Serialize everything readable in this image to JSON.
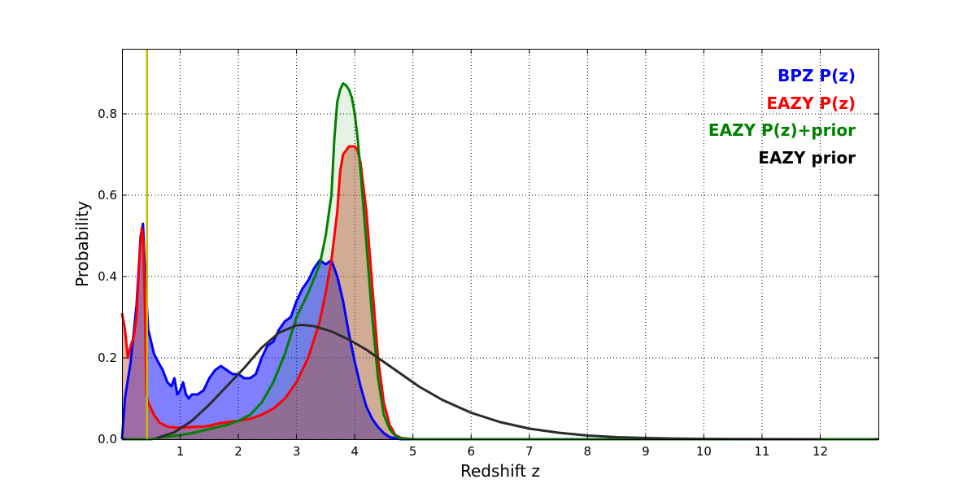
{
  "chart_data": {
    "type": "area",
    "xlabel": "Redshift z",
    "ylabel": "Probability",
    "xlim": [
      0,
      13
    ],
    "ylim": [
      0,
      0.96
    ],
    "x_ticks": [
      1,
      2,
      3,
      4,
      5,
      6,
      7,
      8,
      9,
      10,
      11,
      12
    ],
    "y_ticks": [
      0.0,
      0.2,
      0.4,
      0.6,
      0.8
    ],
    "y_tick_labels": [
      "0.0",
      "0.2",
      "0.4",
      "0.6",
      "0.8"
    ],
    "grid": true,
    "legend_position": "top-right",
    "vertical_line": {
      "x": 0.43,
      "color": "#bfbf00"
    },
    "series": [
      {
        "name": "BPZ P(z)",
        "color": "#0000ff",
        "fill": "rgba(0,0,255,0.5)",
        "x": [
          0,
          0.05,
          0.15,
          0.25,
          0.32,
          0.36,
          0.4,
          0.45,
          0.55,
          0.62,
          0.7,
          0.78,
          0.85,
          0.9,
          0.95,
          1.0,
          1.05,
          1.1,
          1.15,
          1.2,
          1.3,
          1.4,
          1.5,
          1.6,
          1.7,
          1.8,
          1.9,
          2.0,
          2.1,
          2.2,
          2.3,
          2.4,
          2.5,
          2.6,
          2.7,
          2.8,
          2.9,
          3.0,
          3.1,
          3.2,
          3.3,
          3.4,
          3.5,
          3.6,
          3.7,
          3.8,
          3.9,
          4.0,
          4.1,
          4.2,
          4.3,
          4.4,
          4.5,
          4.6,
          4.7,
          4.8,
          5.0,
          13
        ],
        "y": [
          0,
          0.1,
          0.19,
          0.33,
          0.5,
          0.53,
          0.4,
          0.27,
          0.21,
          0.19,
          0.17,
          0.14,
          0.13,
          0.15,
          0.11,
          0.12,
          0.14,
          0.11,
          0.1,
          0.11,
          0.11,
          0.12,
          0.15,
          0.17,
          0.18,
          0.17,
          0.16,
          0.16,
          0.15,
          0.15,
          0.16,
          0.2,
          0.23,
          0.24,
          0.27,
          0.29,
          0.3,
          0.34,
          0.37,
          0.39,
          0.42,
          0.44,
          0.43,
          0.44,
          0.4,
          0.34,
          0.26,
          0.19,
          0.13,
          0.08,
          0.05,
          0.03,
          0.015,
          0.005,
          0.002,
          0,
          0,
          0
        ]
      },
      {
        "name": "EAZY P(z)",
        "color": "#ff0000",
        "fill": "rgba(205,85,55,0.45)",
        "x": [
          0,
          0.05,
          0.1,
          0.15,
          0.2,
          0.25,
          0.3,
          0.34,
          0.37,
          0.4,
          0.42,
          0.45,
          0.55,
          0.65,
          0.8,
          1.0,
          1.2,
          1.4,
          1.5,
          1.7,
          2.0,
          2.2,
          2.4,
          2.6,
          2.8,
          3.0,
          3.2,
          3.4,
          3.5,
          3.6,
          3.7,
          3.75,
          3.8,
          3.9,
          4.0,
          4.05,
          4.1,
          4.2,
          4.3,
          4.4,
          4.5,
          4.6,
          4.7,
          4.8,
          5.0,
          13
        ],
        "y": [
          0.31,
          0.27,
          0.2,
          0.23,
          0.25,
          0.3,
          0.45,
          0.52,
          0.48,
          0.28,
          0.11,
          0.09,
          0.06,
          0.04,
          0.03,
          0.028,
          0.03,
          0.031,
          0.033,
          0.04,
          0.045,
          0.05,
          0.06,
          0.075,
          0.1,
          0.14,
          0.2,
          0.29,
          0.36,
          0.44,
          0.56,
          0.66,
          0.7,
          0.72,
          0.72,
          0.71,
          0.68,
          0.56,
          0.38,
          0.2,
          0.09,
          0.035,
          0.01,
          0.003,
          0,
          0
        ]
      },
      {
        "name": "EAZY P(z)+prior",
        "color": "#008000",
        "fill": "rgba(0,128,0,0.1)",
        "x": [
          0,
          0.5,
          0.7,
          1.0,
          1.2,
          1.5,
          1.8,
          2.0,
          2.2,
          2.4,
          2.6,
          2.8,
          3.0,
          3.2,
          3.4,
          3.5,
          3.6,
          3.65,
          3.7,
          3.75,
          3.8,
          3.85,
          3.9,
          3.95,
          4.0,
          4.05,
          4.1,
          4.2,
          4.3,
          4.4,
          4.5,
          4.6,
          4.7,
          4.8,
          5.0,
          13
        ],
        "y": [
          0,
          0,
          0.005,
          0.01,
          0.015,
          0.025,
          0.035,
          0.045,
          0.06,
          0.09,
          0.14,
          0.21,
          0.3,
          0.36,
          0.43,
          0.5,
          0.6,
          0.74,
          0.83,
          0.86,
          0.875,
          0.87,
          0.86,
          0.84,
          0.8,
          0.74,
          0.66,
          0.48,
          0.3,
          0.15,
          0.06,
          0.025,
          0.008,
          0.002,
          0,
          0
        ]
      },
      {
        "name": "EAZY prior",
        "color": "#2b2b2b",
        "fill": "none",
        "x": [
          0.6,
          0.9,
          1.2,
          1.5,
          1.8,
          2.1,
          2.4,
          2.7,
          3.0,
          3.1,
          3.3,
          3.6,
          3.9,
          4.2,
          4.5,
          4.8,
          5.1,
          5.5,
          6.0,
          6.5,
          7.0,
          7.5,
          8.0,
          8.5,
          9.0,
          9.5,
          10.0,
          11.0,
          12.0
        ],
        "y": [
          0.003,
          0.017,
          0.045,
          0.085,
          0.13,
          0.175,
          0.225,
          0.262,
          0.28,
          0.281,
          0.278,
          0.265,
          0.245,
          0.22,
          0.19,
          0.16,
          0.13,
          0.097,
          0.065,
          0.042,
          0.026,
          0.016,
          0.009,
          0.005,
          0.003,
          0.0015,
          0.0008,
          0.0002,
          0
        ]
      }
    ]
  }
}
